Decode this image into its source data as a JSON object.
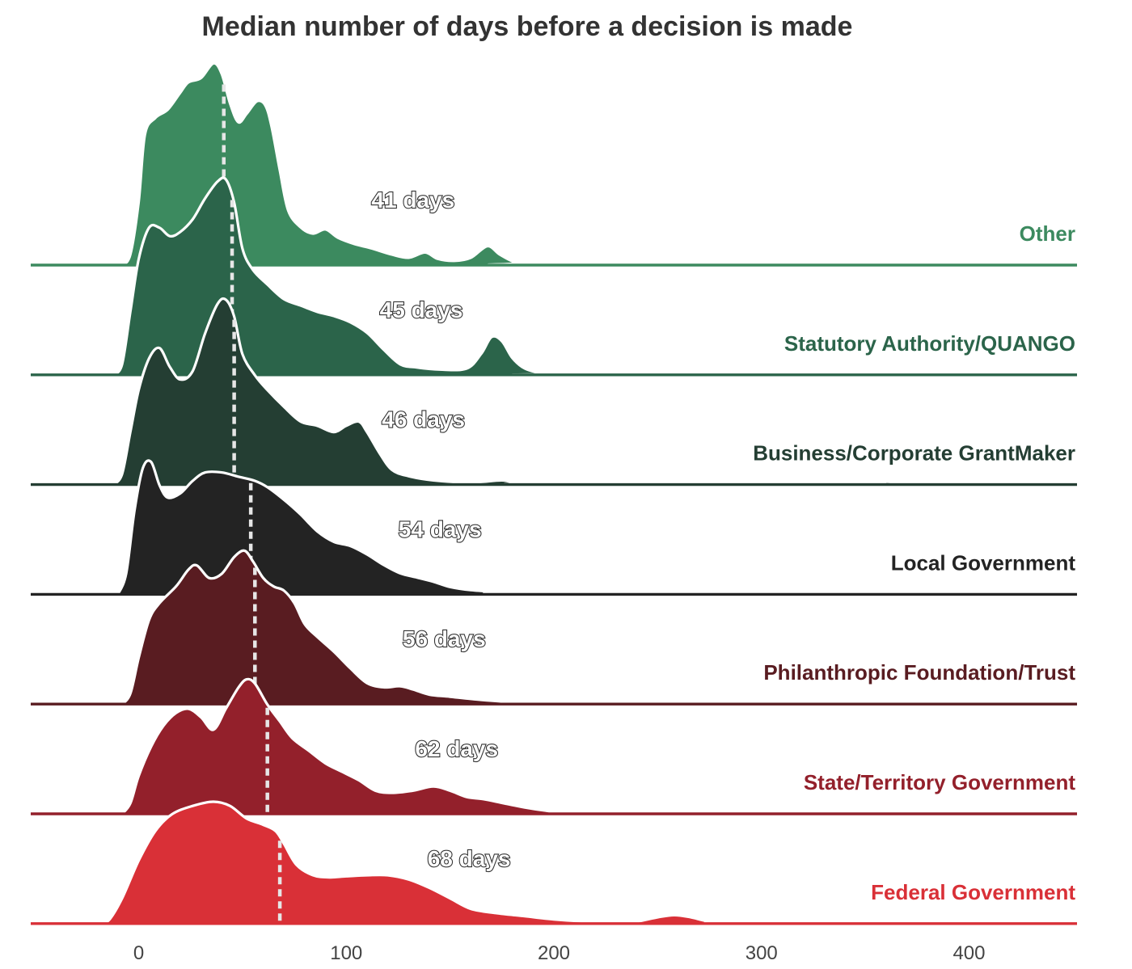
{
  "chart_data": {
    "type": "area",
    "title": "Median number of days before a decision is made",
    "xlabel": "",
    "ylabel": "",
    "xlim": [
      -52,
      452
    ],
    "xticks": [
      0,
      100,
      200,
      300,
      400
    ],
    "tick_labels": [
      "0",
      "100",
      "200",
      "300",
      "400"
    ],
    "grid": false,
    "series": [
      {
        "name": "Other",
        "color": "#3c8a5f",
        "median": 41,
        "median_label": "41 days",
        "density": [
          [
            -8,
            0
          ],
          [
            -4,
            0.05
          ],
          [
            0,
            0.3
          ],
          [
            3,
            0.62
          ],
          [
            8,
            0.7
          ],
          [
            14,
            0.74
          ],
          [
            20,
            0.82
          ],
          [
            24,
            0.87
          ],
          [
            30,
            0.89
          ],
          [
            36,
            0.96
          ],
          [
            40,
            0.91
          ],
          [
            44,
            0.77
          ],
          [
            48,
            0.68
          ],
          [
            52,
            0.72
          ],
          [
            57,
            0.78
          ],
          [
            61,
            0.76
          ],
          [
            64,
            0.66
          ],
          [
            68,
            0.45
          ],
          [
            72,
            0.26
          ],
          [
            78,
            0.18
          ],
          [
            84,
            0.15
          ],
          [
            90,
            0.17
          ],
          [
            96,
            0.13
          ],
          [
            104,
            0.1
          ],
          [
            112,
            0.08
          ],
          [
            122,
            0.05
          ],
          [
            130,
            0.035
          ],
          [
            138,
            0.06
          ],
          [
            144,
            0.03
          ],
          [
            152,
            0.02
          ],
          [
            160,
            0.035
          ],
          [
            168,
            0.09
          ],
          [
            174,
            0.05
          ],
          [
            182,
            0.01
          ],
          [
            190,
            0
          ],
          [
            452,
            0
          ]
        ]
      },
      {
        "name": "Statutory Authority/QUANGO",
        "color": "#2b644a",
        "median": 45,
        "median_label": "45 days",
        "density": [
          [
            -12,
            0
          ],
          [
            -8,
            0.05
          ],
          [
            -4,
            0.3
          ],
          [
            0,
            0.55
          ],
          [
            5,
            0.7
          ],
          [
            10,
            0.7
          ],
          [
            15,
            0.66
          ],
          [
            20,
            0.68
          ],
          [
            26,
            0.74
          ],
          [
            32,
            0.84
          ],
          [
            38,
            0.92
          ],
          [
            42,
            0.93
          ],
          [
            46,
            0.82
          ],
          [
            50,
            0.6
          ],
          [
            55,
            0.5
          ],
          [
            62,
            0.43
          ],
          [
            70,
            0.36
          ],
          [
            78,
            0.33
          ],
          [
            86,
            0.3
          ],
          [
            94,
            0.28
          ],
          [
            102,
            0.25
          ],
          [
            110,
            0.2
          ],
          [
            118,
            0.12
          ],
          [
            126,
            0.05
          ],
          [
            134,
            0.035
          ],
          [
            145,
            0.025
          ],
          [
            158,
            0.03
          ],
          [
            165,
            0.1
          ],
          [
            170,
            0.18
          ],
          [
            175,
            0.16
          ],
          [
            180,
            0.08
          ],
          [
            186,
            0.03
          ],
          [
            195,
            0.005
          ],
          [
            200,
            0
          ],
          [
            452,
            0
          ]
        ]
      },
      {
        "name": "Business/Corporate GrantMaker",
        "color": "#243e33",
        "median": 46,
        "median_label": "46 days",
        "density": [
          [
            -12,
            0
          ],
          [
            -8,
            0.05
          ],
          [
            -4,
            0.25
          ],
          [
            0,
            0.45
          ],
          [
            5,
            0.6
          ],
          [
            10,
            0.65
          ],
          [
            15,
            0.56
          ],
          [
            20,
            0.5
          ],
          [
            26,
            0.54
          ],
          [
            32,
            0.72
          ],
          [
            38,
            0.86
          ],
          [
            42,
            0.88
          ],
          [
            46,
            0.8
          ],
          [
            50,
            0.62
          ],
          [
            56,
            0.52
          ],
          [
            62,
            0.45
          ],
          [
            70,
            0.37
          ],
          [
            78,
            0.3
          ],
          [
            86,
            0.28
          ],
          [
            94,
            0.25
          ],
          [
            100,
            0.28
          ],
          [
            106,
            0.3
          ],
          [
            110,
            0.25
          ],
          [
            116,
            0.15
          ],
          [
            122,
            0.07
          ],
          [
            130,
            0.04
          ],
          [
            142,
            0.02
          ],
          [
            160,
            0.01
          ],
          [
            175,
            0.02
          ],
          [
            182,
            0.005
          ],
          [
            190,
            0
          ],
          [
            345,
            0
          ],
          [
            355,
            0.015
          ],
          [
            365,
            0.01
          ],
          [
            372,
            0
          ],
          [
            452,
            0
          ]
        ]
      },
      {
        "name": "Local Government",
        "color": "#232323",
        "median": 54,
        "median_label": "54 days",
        "density": [
          [
            -10,
            0
          ],
          [
            -6,
            0.1
          ],
          [
            -2,
            0.4
          ],
          [
            2,
            0.6
          ],
          [
            6,
            0.63
          ],
          [
            10,
            0.52
          ],
          [
            14,
            0.46
          ],
          [
            20,
            0.48
          ],
          [
            26,
            0.54
          ],
          [
            32,
            0.58
          ],
          [
            40,
            0.58
          ],
          [
            48,
            0.56
          ],
          [
            56,
            0.54
          ],
          [
            62,
            0.51
          ],
          [
            70,
            0.45
          ],
          [
            78,
            0.38
          ],
          [
            86,
            0.3
          ],
          [
            94,
            0.25
          ],
          [
            102,
            0.23
          ],
          [
            110,
            0.19
          ],
          [
            118,
            0.14
          ],
          [
            126,
            0.1
          ],
          [
            134,
            0.08
          ],
          [
            142,
            0.06
          ],
          [
            150,
            0.035
          ],
          [
            160,
            0.02
          ],
          [
            175,
            0.01
          ],
          [
            190,
            0
          ],
          [
            452,
            0
          ]
        ]
      },
      {
        "name": "Philanthropic Foundation/Trust",
        "color": "#591c21",
        "median": 56,
        "median_label": "56 days",
        "density": [
          [
            -8,
            0
          ],
          [
            -4,
            0.05
          ],
          [
            0,
            0.22
          ],
          [
            5,
            0.4
          ],
          [
            10,
            0.48
          ],
          [
            18,
            0.56
          ],
          [
            24,
            0.64
          ],
          [
            28,
            0.66
          ],
          [
            34,
            0.6
          ],
          [
            40,
            0.62
          ],
          [
            46,
            0.7
          ],
          [
            51,
            0.73
          ],
          [
            55,
            0.68
          ],
          [
            60,
            0.6
          ],
          [
            65,
            0.56
          ],
          [
            70,
            0.54
          ],
          [
            75,
            0.48
          ],
          [
            80,
            0.38
          ],
          [
            86,
            0.32
          ],
          [
            94,
            0.25
          ],
          [
            102,
            0.17
          ],
          [
            110,
            0.1
          ],
          [
            118,
            0.08
          ],
          [
            126,
            0.085
          ],
          [
            132,
            0.07
          ],
          [
            140,
            0.045
          ],
          [
            150,
            0.035
          ],
          [
            165,
            0.02
          ],
          [
            180,
            0.01
          ],
          [
            200,
            0.005
          ],
          [
            215,
            0
          ],
          [
            452,
            0
          ]
        ]
      },
      {
        "name": "State/Territory Government",
        "color": "#93202b",
        "median": 62,
        "median_label": "62 days",
        "density": [
          [
            -8,
            0
          ],
          [
            -4,
            0.05
          ],
          [
            0,
            0.18
          ],
          [
            6,
            0.32
          ],
          [
            12,
            0.42
          ],
          [
            18,
            0.48
          ],
          [
            24,
            0.5
          ],
          [
            30,
            0.46
          ],
          [
            36,
            0.4
          ],
          [
            42,
            0.5
          ],
          [
            48,
            0.6
          ],
          [
            52,
            0.64
          ],
          [
            56,
            0.62
          ],
          [
            62,
            0.52
          ],
          [
            68,
            0.44
          ],
          [
            74,
            0.36
          ],
          [
            82,
            0.3
          ],
          [
            90,
            0.24
          ],
          [
            98,
            0.2
          ],
          [
            106,
            0.16
          ],
          [
            114,
            0.11
          ],
          [
            122,
            0.1
          ],
          [
            132,
            0.11
          ],
          [
            142,
            0.13
          ],
          [
            150,
            0.11
          ],
          [
            158,
            0.08
          ],
          [
            166,
            0.07
          ],
          [
            176,
            0.05
          ],
          [
            186,
            0.03
          ],
          [
            196,
            0.015
          ],
          [
            210,
            0
          ],
          [
            270,
            0
          ],
          [
            280,
            0.008
          ],
          [
            290,
            0
          ],
          [
            315,
            0
          ],
          [
            320,
            0.006
          ],
          [
            326,
            0
          ],
          [
            452,
            0
          ]
        ]
      },
      {
        "name": "Federal Government",
        "color": "#d93037",
        "median": 68,
        "median_label": "68 days",
        "density": [
          [
            -18,
            0
          ],
          [
            -14,
            0.02
          ],
          [
            -8,
            0.12
          ],
          [
            0,
            0.3
          ],
          [
            8,
            0.44
          ],
          [
            16,
            0.52
          ],
          [
            26,
            0.56
          ],
          [
            36,
            0.58
          ],
          [
            44,
            0.56
          ],
          [
            52,
            0.5
          ],
          [
            60,
            0.47
          ],
          [
            66,
            0.44
          ],
          [
            70,
            0.38
          ],
          [
            76,
            0.28
          ],
          [
            84,
            0.23
          ],
          [
            92,
            0.22
          ],
          [
            100,
            0.225
          ],
          [
            110,
            0.23
          ],
          [
            120,
            0.23
          ],
          [
            130,
            0.21
          ],
          [
            140,
            0.17
          ],
          [
            150,
            0.12
          ],
          [
            160,
            0.07
          ],
          [
            172,
            0.05
          ],
          [
            186,
            0.035
          ],
          [
            200,
            0.02
          ],
          [
            215,
            0.01
          ],
          [
            230,
            0.005
          ],
          [
            240,
            0.01
          ],
          [
            250,
            0.03
          ],
          [
            258,
            0.04
          ],
          [
            266,
            0.03
          ],
          [
            275,
            0.01
          ],
          [
            290,
            0
          ],
          [
            452,
            0
          ]
        ]
      }
    ]
  }
}
